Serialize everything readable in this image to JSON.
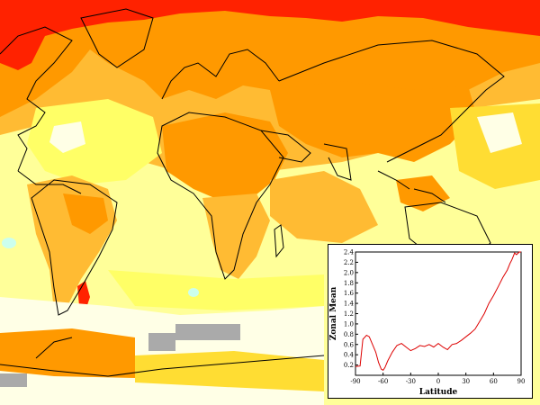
{
  "map": {
    "colors": {
      "ocean_base": "#ffff99",
      "pale": "#ffffe6",
      "light_yellow": "#ffff66",
      "yellow": "#ffdd33",
      "gold": "#ffbb33",
      "orange": "#ff9900",
      "dark_orange": "#ff6600",
      "red": "#ff2200",
      "cyan": "#ccffee",
      "missing": "#aaaaaa",
      "coast": "#000000"
    }
  },
  "chart_data": {
    "type": "line",
    "title": "",
    "xlabel": "Latitude",
    "ylabel": "Zonal Mean",
    "xlim": [
      -90,
      90
    ],
    "ylim": [
      0,
      2.4
    ],
    "x_ticks": [
      "-90",
      "-60",
      "-30",
      "0",
      "30",
      "60",
      "90"
    ],
    "y_ticks": [
      "0.2",
      "0.4",
      "0.6",
      "0.8",
      "1.0",
      "1.2",
      "1.4",
      "1.6",
      "1.8",
      "2.0",
      "2.2",
      "2.4"
    ],
    "line_color": "#dd0000",
    "series": [
      {
        "name": "zonal mean",
        "x": [
          -90,
          -85,
          -82,
          -78,
          -75,
          -72,
          -68,
          -65,
          -62,
          -60,
          -58,
          -55,
          -50,
          -45,
          -40,
          -35,
          -30,
          -25,
          -20,
          -15,
          -10,
          -5,
          0,
          5,
          10,
          15,
          20,
          25,
          30,
          35,
          40,
          45,
          50,
          55,
          60,
          65,
          70,
          75,
          78,
          80,
          83,
          85,
          88,
          90
        ],
        "y": [
          0.17,
          0.18,
          0.7,
          0.78,
          0.75,
          0.62,
          0.45,
          0.25,
          0.12,
          0.1,
          0.15,
          0.28,
          0.45,
          0.58,
          0.62,
          0.55,
          0.48,
          0.52,
          0.58,
          0.56,
          0.6,
          0.55,
          0.62,
          0.55,
          0.5,
          0.6,
          0.62,
          0.68,
          0.75,
          0.82,
          0.9,
          1.05,
          1.2,
          1.4,
          1.55,
          1.72,
          1.9,
          2.05,
          2.18,
          2.25,
          2.38,
          2.35,
          2.4,
          2.4
        ]
      }
    ]
  }
}
